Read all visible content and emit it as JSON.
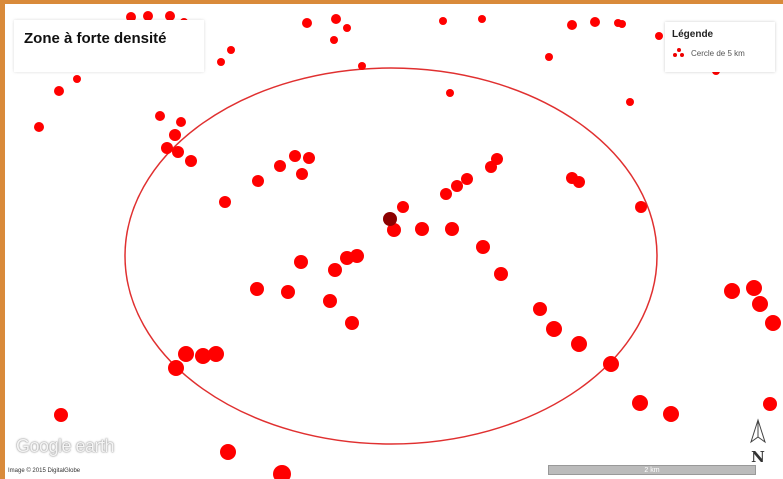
{
  "map": {
    "title": "Zone à forte densité",
    "legend": {
      "title": "Légende",
      "item_label": "Cercle de 5 km",
      "item_color": "#e00000"
    },
    "logo": "Google earth",
    "credit": "Image © 2015 DigitalGlobe",
    "scale_label": "2 km",
    "north_label": "N",
    "colors": {
      "point": "#ff0000",
      "highlight_point": "#8b0000",
      "circle": "#e03030",
      "frame": "#d98a3a"
    }
  }
}
